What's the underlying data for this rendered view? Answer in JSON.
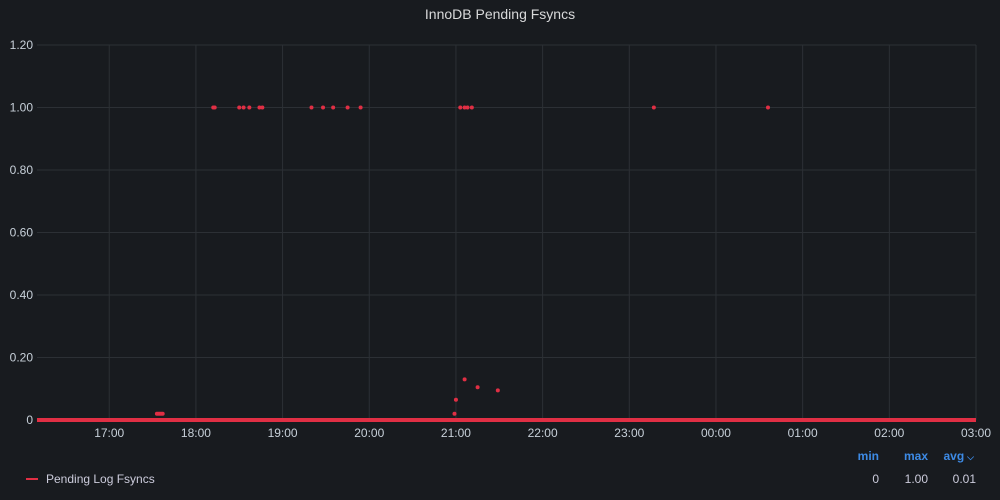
{
  "panel": {
    "title": "InnoDB Pending Fsyncs"
  },
  "legend": {
    "headers": {
      "min": "min",
      "max": "max",
      "avg": "avg"
    },
    "sort_icon": "chevron-down-icon",
    "series": [
      {
        "name": "Pending Log Fsyncs",
        "min": "0",
        "max": "1.00",
        "avg": "0.01"
      }
    ]
  },
  "colors": {
    "series": "#e02f44",
    "background": "#181b1f",
    "grid": "#2c3035",
    "legend_header": "#3d8be6"
  },
  "chart_data": {
    "type": "scatter",
    "title": "InnoDB Pending Fsyncs",
    "xlabel": "",
    "ylabel": "",
    "x_ticks": [
      "17:00",
      "18:00",
      "19:00",
      "20:00",
      "21:00",
      "22:00",
      "23:00",
      "00:00",
      "01:00",
      "02:00",
      "03:00"
    ],
    "y_ticks": [
      "0",
      "0.20",
      "0.40",
      "0.60",
      "0.80",
      "1.00",
      "1.20"
    ],
    "xlim": [
      "16:10",
      "03:00"
    ],
    "ylim": [
      0,
      1.2
    ],
    "grid": true,
    "legend_position": "bottom",
    "series": [
      {
        "name": "Pending Log Fsyncs",
        "baseline": {
          "y": 0,
          "from": "16:10",
          "to": "03:00"
        },
        "points": [
          {
            "x": "17:33",
            "y": 0.02
          },
          {
            "x": "17:34",
            "y": 0.02
          },
          {
            "x": "17:35",
            "y": 0.02
          },
          {
            "x": "17:36",
            "y": 0.02
          },
          {
            "x": "17:37",
            "y": 0.02
          },
          {
            "x": "18:12",
            "y": 1
          },
          {
            "x": "18:13",
            "y": 1
          },
          {
            "x": "18:30",
            "y": 1
          },
          {
            "x": "18:33",
            "y": 1
          },
          {
            "x": "18:37",
            "y": 1
          },
          {
            "x": "18:44",
            "y": 1
          },
          {
            "x": "18:46",
            "y": 1
          },
          {
            "x": "19:20",
            "y": 1
          },
          {
            "x": "19:28",
            "y": 1
          },
          {
            "x": "19:35",
            "y": 1
          },
          {
            "x": "19:45",
            "y": 1
          },
          {
            "x": "19:54",
            "y": 1
          },
          {
            "x": "20:59",
            "y": 0.02
          },
          {
            "x": "21:00",
            "y": 0.065
          },
          {
            "x": "21:03",
            "y": 1
          },
          {
            "x": "21:06",
            "y": 1
          },
          {
            "x": "21:08",
            "y": 1
          },
          {
            "x": "21:11",
            "y": 1
          },
          {
            "x": "21:06",
            "y": 0.13
          },
          {
            "x": "21:15",
            "y": 0.105
          },
          {
            "x": "21:29",
            "y": 0.095
          },
          {
            "x": "23:17",
            "y": 1
          },
          {
            "x": "00:36",
            "y": 1
          }
        ]
      }
    ]
  }
}
